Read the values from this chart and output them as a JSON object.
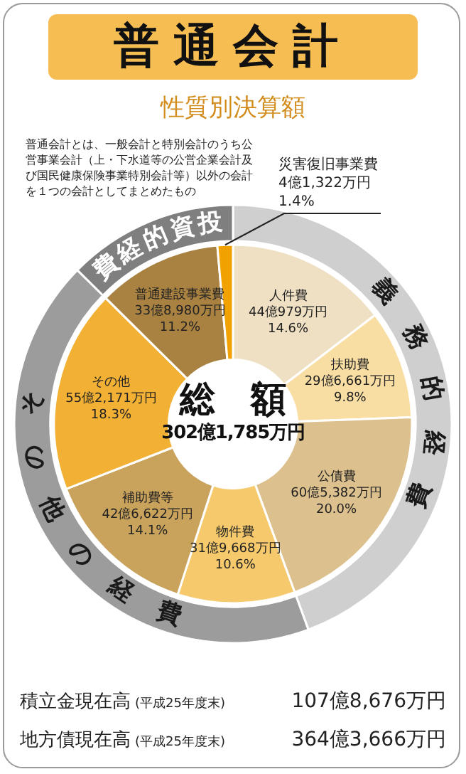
{
  "chart_data": [
    {
      "type": "donut",
      "title": "普通会計",
      "subtitle": "性質別決算額",
      "categories": [
        "人件費",
        "扶助費",
        "公債費",
        "物件費",
        "補助費等",
        "その他",
        "普通建設事業費",
        "災害復旧事業費"
      ],
      "values": [
        14.6,
        9.8,
        20.0,
        10.6,
        14.1,
        18.3,
        11.2,
        1.4
      ],
      "value_labels": [
        "44億979万円\n14.6%",
        "29億6,661万円\n9.8%",
        "60億5,382万円\n20.0%",
        "31億9,668万円\n10.6%",
        "42億6,622万円\n14.1%",
        "55億2,171万円\n18.3%",
        "33億8,980万円\n11.2%",
        "4億1,322万円\n1.4%"
      ],
      "colors": [
        "#efe0c4",
        "#f9dea4",
        "#dcc08e",
        "#f6ca6c",
        "#c9a25c",
        "#f2b134",
        "#a98241",
        "#f1a200"
      ],
      "annotations": [
        "普通会計とは、一般会計と特別会計のうち公営事業会計（上・下水道等の公営企業会計及び国民健康保険事業特別会計等）以外の会計を１つの会計としてまとめたもの",
        "総　額",
        "302億1,785万円",
        "積立金現在高",
        "(平成25年度末)",
        "107億8,676万円",
        "地方債現在高",
        "(平成25年度末)",
        "364億3,666万円"
      ],
      "legend": false
    },
    {
      "type": "donut",
      "categories": [
        "義務的経費",
        "その他の経費",
        "投資的経費"
      ],
      "values": [
        44.4,
        43.0,
        12.6
      ],
      "colors": [
        "#cfcfcf",
        "#9c9c9c",
        "#7f7f7f"
      ],
      "legend": false
    }
  ]
}
